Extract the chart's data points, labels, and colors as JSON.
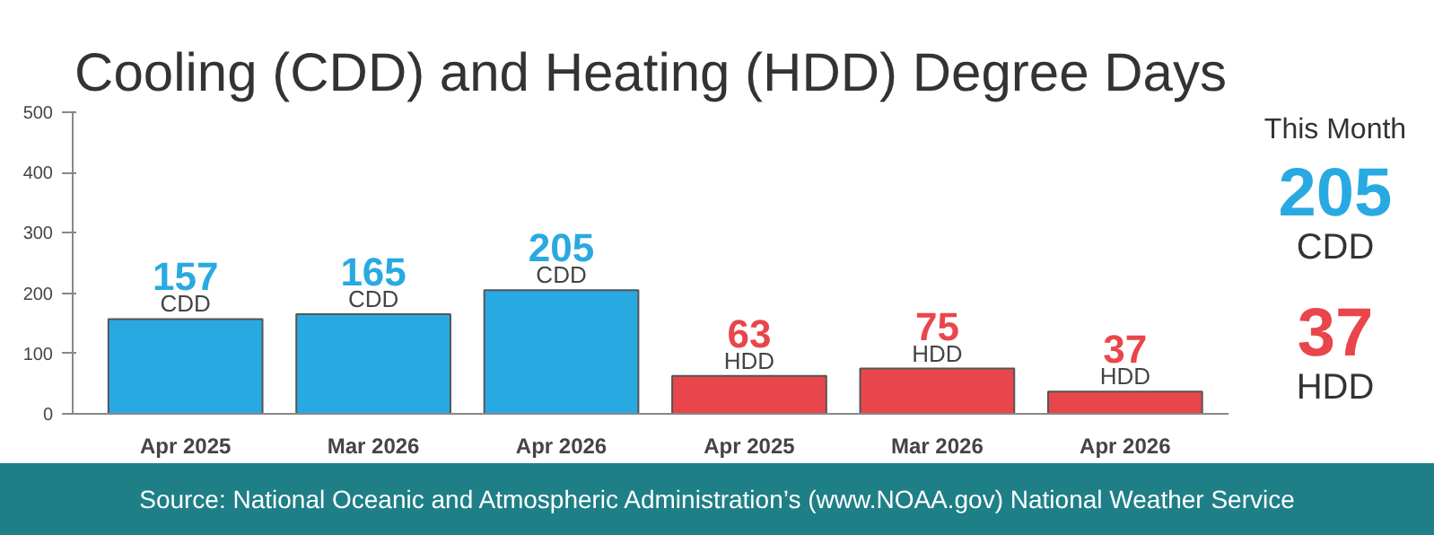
{
  "chart_data": {
    "type": "bar",
    "title": "Cooling (CDD) and Heating (HDD) Degree Days",
    "categories": [
      "Apr 2025",
      "Mar 2026",
      "Apr 2026",
      "Apr 2025",
      "Mar 2026",
      "Apr 2026"
    ],
    "series": [
      {
        "name": "CDD",
        "color": "#29a9e1",
        "values": [
          157,
          165,
          205,
          null,
          null,
          null
        ]
      },
      {
        "name": "HDD",
        "color": "#e9464b",
        "values": [
          null,
          null,
          null,
          63,
          75,
          37
        ]
      }
    ],
    "ylim": [
      0,
      500
    ],
    "yticks": [
      0,
      100,
      200,
      300,
      400,
      500
    ],
    "grid": false,
    "data_labels": true,
    "annotations": [
      "This Month",
      "205",
      "CDD",
      "37",
      "HDD",
      "Source: National Oceanic and Atmospheric Administration’s (www.NOAA.gov) National Weather Service"
    ]
  }
}
